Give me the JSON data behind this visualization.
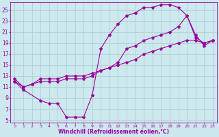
{
  "xlabel": "Windchill (Refroidissement éolien,°C)",
  "bg_color": "#cde8ee",
  "grid_color": "#a8cfc8",
  "line_color": "#990099",
  "xlim": [
    -0.5,
    23.5
  ],
  "ylim": [
    4.5,
    26.5
  ],
  "yticks": [
    5,
    7,
    9,
    11,
    13,
    15,
    17,
    19,
    21,
    23,
    25
  ],
  "xticks": [
    0,
    1,
    2,
    3,
    4,
    5,
    6,
    7,
    8,
    9,
    10,
    11,
    12,
    13,
    14,
    15,
    16,
    17,
    18,
    19,
    20,
    21,
    22,
    23
  ],
  "series1_x": [
    0,
    1,
    3,
    4,
    5,
    6,
    7,
    8,
    9,
    10,
    11,
    12,
    13,
    14,
    15,
    16,
    17,
    18,
    19,
    20,
    21,
    22,
    23
  ],
  "series1_y": [
    12.0,
    10.5,
    8.5,
    8.0,
    8.0,
    5.5,
    5.5,
    5.5,
    9.5,
    18.0,
    20.5,
    22.5,
    24.0,
    24.5,
    25.5,
    25.5,
    26.0,
    26.0,
    25.5,
    24.0,
    20.0,
    19.0,
    19.5
  ],
  "series2_x": [
    0,
    1,
    2,
    3,
    4,
    5,
    6,
    7,
    8,
    9,
    10,
    11,
    12,
    13,
    14,
    15,
    16,
    17,
    18,
    19,
    20,
    21,
    22,
    23
  ],
  "series2_y": [
    12.0,
    11.0,
    11.5,
    12.0,
    12.0,
    12.0,
    12.5,
    12.5,
    12.5,
    13.0,
    14.0,
    14.5,
    15.5,
    18.0,
    18.5,
    19.5,
    20.0,
    20.5,
    21.0,
    22.0,
    24.0,
    20.5,
    18.5,
    19.5
  ],
  "series3_x": [
    0,
    1,
    2,
    3,
    4,
    5,
    6,
    7,
    8,
    9,
    10,
    11,
    12,
    13,
    14,
    15,
    16,
    17,
    18,
    19,
    20,
    21,
    22,
    23
  ],
  "series3_y": [
    12.5,
    11.0,
    11.5,
    12.5,
    12.5,
    12.5,
    13.0,
    13.0,
    13.0,
    13.5,
    14.0,
    14.5,
    15.0,
    15.5,
    16.0,
    17.0,
    17.5,
    18.0,
    18.5,
    19.0,
    19.5,
    19.5,
    19.0,
    19.5
  ]
}
